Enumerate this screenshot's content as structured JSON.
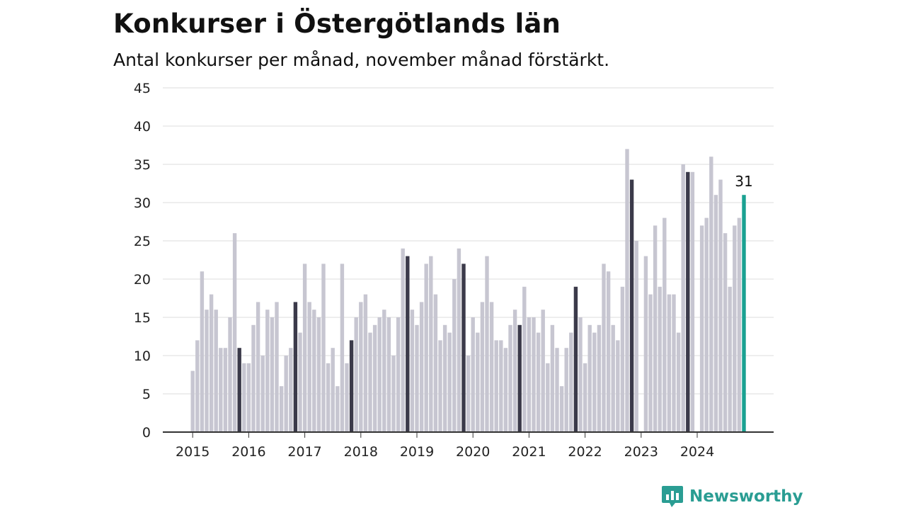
{
  "chart_data": {
    "type": "bar",
    "title": "Konkurser i Östergötlands län",
    "subtitle": "Antal konkurser per månad, november månad förstärkt.",
    "xlabel": "",
    "ylabel": "",
    "ylim": [
      0,
      45
    ],
    "yticks": [
      "0",
      "5",
      "10",
      "15",
      "20",
      "25",
      "30",
      "35",
      "40",
      "45"
    ],
    "x_ticks": [
      "2015",
      "2016",
      "2017",
      "2018",
      "2019",
      "2020",
      "2021",
      "2022",
      "2023",
      "2024"
    ],
    "start_year": 2015,
    "highlight_month": 11,
    "grid": true,
    "annotation": "31",
    "colors": {
      "regular": "#c7c6d1",
      "november": "#3b3a4a",
      "latest": "#1aa192",
      "grid": "#dddddd",
      "axis": "#333333"
    },
    "values": [
      8,
      12,
      21,
      16,
      18,
      16,
      11,
      11,
      15,
      26,
      11,
      9,
      9,
      14,
      17,
      10,
      16,
      15,
      17,
      6,
      10,
      11,
      17,
      13,
      22,
      17,
      16,
      15,
      22,
      9,
      11,
      6,
      22,
      9,
      12,
      15,
      17,
      18,
      13,
      14,
      15,
      16,
      15,
      10,
      15,
      24,
      23,
      16,
      14,
      17,
      22,
      23,
      18,
      12,
      14,
      13,
      20,
      24,
      22,
      10,
      15,
      13,
      17,
      23,
      17,
      12,
      12,
      11,
      14,
      16,
      14,
      19,
      15,
      15,
      13,
      16,
      9,
      14,
      11,
      6,
      11,
      13,
      19,
      15,
      9,
      14,
      13,
      14,
      22,
      21,
      14,
      12,
      19,
      37,
      33,
      25,
      0,
      23,
      18,
      27,
      19,
      28,
      18,
      18,
      13,
      35,
      34,
      34,
      0,
      27,
      28,
      36,
      31,
      33,
      26,
      19,
      27,
      28,
      31
    ]
  },
  "brand": {
    "name": "Newsworthy",
    "logo_icon": "newsworthy-logo-icon"
  }
}
